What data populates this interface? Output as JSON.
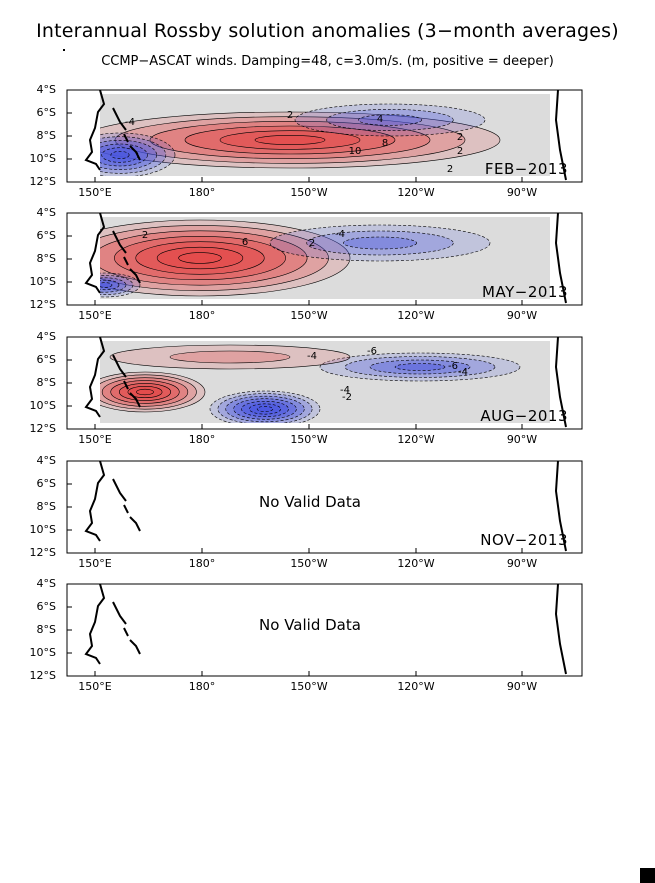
{
  "title": "Interannual Rossby solution anomalies (3−month averages)",
  "subtitle": "CCMP−ASCAT winds. Damping=48, c=3.0m/s. (m, positive = deeper)",
  "colors": {
    "positive": "#e34a4a",
    "negative": "#4a56e0",
    "neutral": "#dcdcdc"
  },
  "axes": {
    "y_ticks": [
      "4°S",
      "6°S",
      "8°S",
      "10°S",
      "12°S"
    ],
    "x_ticks": [
      "150°E",
      "180°",
      "150°W",
      "120°W",
      "90°W"
    ]
  },
  "no_data_text": "No Valid Data",
  "chart_data": [
    {
      "type": "contour-map",
      "period": "FEB−2013",
      "xlim": [
        "140°E",
        "75°W"
      ],
      "ylim": [
        "12°S",
        "4°S"
      ],
      "contour_labels": [
        "2",
        "4",
        "-4",
        "10",
        "8",
        "2",
        "2",
        "2"
      ],
      "features": [
        {
          "sign": "positive",
          "center": [
            "150°W",
            "8.5°S"
          ],
          "max": 10
        },
        {
          "sign": "negative",
          "center": [
            "150°E",
            "10°S"
          ],
          "min": -10
        },
        {
          "sign": "negative",
          "center": [
            "125°W",
            "5°S"
          ],
          "min": -4
        }
      ]
    },
    {
      "type": "contour-map",
      "period": "MAY−2013",
      "xlim": [
        "140°E",
        "75°W"
      ],
      "ylim": [
        "12°S",
        "4°S"
      ],
      "contour_labels": [
        "2",
        "6",
        "2",
        "-4"
      ],
      "features": [
        {
          "sign": "positive",
          "center": [
            "170°E",
            "8°S"
          ],
          "max": 10
        },
        {
          "sign": "negative",
          "center": [
            "150°E",
            "11°S"
          ],
          "min": -10
        },
        {
          "sign": "negative",
          "center": [
            "125°W",
            "5.5°S"
          ],
          "min": -4
        }
      ]
    },
    {
      "type": "contour-map",
      "period": "AUG−2013",
      "xlim": [
        "140°E",
        "75°W"
      ],
      "ylim": [
        "12°S",
        "4°S"
      ],
      "contour_labels": [
        "-4",
        "-6",
        "-6",
        "-4",
        "-4",
        "-2"
      ],
      "features": [
        {
          "sign": "positive",
          "center": [
            "165°E",
            "9.5°S"
          ],
          "max": 10
        },
        {
          "sign": "negative",
          "center": [
            "160°W",
            "10.5°S"
          ],
          "min": -10
        },
        {
          "sign": "negative",
          "center": [
            "120°W",
            "6.5°S"
          ],
          "min": -6
        }
      ]
    },
    {
      "type": "contour-map",
      "period": "NOV−2013",
      "xlim": [
        "140°E",
        "75°W"
      ],
      "ylim": [
        "12°S",
        "4°S"
      ],
      "message": "No Valid Data"
    },
    {
      "type": "contour-map",
      "period": "",
      "xlim": [
        "140°E",
        "75°W"
      ],
      "ylim": [
        "12°S",
        "4°S"
      ],
      "message": "No Valid Data"
    }
  ]
}
